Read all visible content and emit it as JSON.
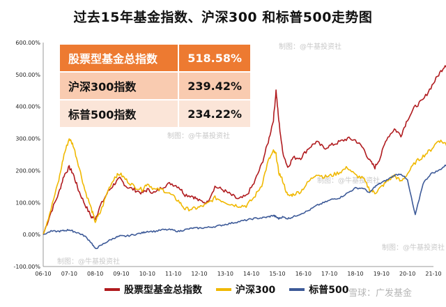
{
  "chart_data": {
    "type": "line",
    "title": "过去15年基金指数、沪深300 和标普500走势图",
    "y_ticks": [
      "600.00%",
      "500.00%",
      "400.00%",
      "300.00%",
      "200.00%",
      "100.00%",
      "0.00%",
      "-100.00%"
    ],
    "ylim": [
      -100,
      600
    ],
    "x_ticks": [
      "06-10",
      "07-10",
      "08-10",
      "09-10",
      "10-10",
      "11-10",
      "12-10",
      "13-10",
      "14-10",
      "15-10",
      "16-10",
      "17-10",
      "18-10",
      "19-10",
      "20-10",
      "21-10"
    ],
    "grid": false,
    "legend_position": "bottom",
    "series": [
      {
        "name": "股票型基金总指数",
        "color": "#b01a1e",
        "points": [
          [
            0,
            0
          ],
          [
            0.3,
            70
          ],
          [
            0.6,
            130
          ],
          [
            0.8,
            185
          ],
          [
            1.0,
            210
          ],
          [
            1.15,
            190
          ],
          [
            1.35,
            140
          ],
          [
            1.6,
            95
          ],
          [
            1.85,
            55
          ],
          [
            2.0,
            50
          ],
          [
            2.2,
            90
          ],
          [
            2.5,
            135
          ],
          [
            2.75,
            160
          ],
          [
            2.95,
            175
          ],
          [
            3.2,
            150
          ],
          [
            3.5,
            140
          ],
          [
            3.8,
            130
          ],
          [
            4.0,
            140
          ],
          [
            4.3,
            130
          ],
          [
            4.6,
            150
          ],
          [
            4.9,
            160
          ],
          [
            5.2,
            150
          ],
          [
            5.45,
            125
          ],
          [
            5.75,
            120
          ],
          [
            6.0,
            105
          ],
          [
            6.3,
            100
          ],
          [
            6.6,
            150
          ],
          [
            6.9,
            140
          ],
          [
            7.2,
            125
          ],
          [
            7.5,
            110
          ],
          [
            7.8,
            120
          ],
          [
            8.1,
            160
          ],
          [
            8.4,
            220
          ],
          [
            8.65,
            290
          ],
          [
            8.85,
            360
          ],
          [
            8.95,
            450
          ],
          [
            9.05,
            360
          ],
          [
            9.2,
            260
          ],
          [
            9.4,
            210
          ],
          [
            9.6,
            240
          ],
          [
            9.9,
            240
          ],
          [
            10.2,
            270
          ],
          [
            10.5,
            290
          ],
          [
            10.8,
            270
          ],
          [
            11.1,
            280
          ],
          [
            11.4,
            290
          ],
          [
            11.7,
            300
          ],
          [
            12.0,
            295
          ],
          [
            12.3,
            270
          ],
          [
            12.55,
            230
          ],
          [
            12.75,
            210
          ],
          [
            12.95,
            240
          ],
          [
            13.2,
            300
          ],
          [
            13.5,
            330
          ],
          [
            13.75,
            310
          ],
          [
            14.0,
            360
          ],
          [
            14.3,
            400
          ],
          [
            14.6,
            420
          ],
          [
            14.9,
            460
          ],
          [
            15.2,
            500
          ],
          [
            15.45,
            530
          ],
          [
            15.65,
            525
          ],
          [
            15.8,
            515
          ]
        ]
      },
      {
        "name": "沪深300",
        "color": "#f0b800",
        "points": [
          [
            0,
            0
          ],
          [
            0.3,
            80
          ],
          [
            0.6,
            170
          ],
          [
            0.8,
            250
          ],
          [
            1.0,
            300
          ],
          [
            1.15,
            280
          ],
          [
            1.35,
            220
          ],
          [
            1.6,
            140
          ],
          [
            1.85,
            80
          ],
          [
            2.0,
            40
          ],
          [
            2.2,
            70
          ],
          [
            2.5,
            140
          ],
          [
            2.75,
            180
          ],
          [
            2.95,
            190
          ],
          [
            3.2,
            170
          ],
          [
            3.5,
            150
          ],
          [
            3.8,
            140
          ],
          [
            4.0,
            160
          ],
          [
            4.3,
            140
          ],
          [
            4.6,
            140
          ],
          [
            4.9,
            125
          ],
          [
            5.2,
            105
          ],
          [
            5.45,
            80
          ],
          [
            5.75,
            80
          ],
          [
            6.0,
            85
          ],
          [
            6.3,
            95
          ],
          [
            6.6,
            115
          ],
          [
            6.9,
            105
          ],
          [
            7.2,
            95
          ],
          [
            7.5,
            90
          ],
          [
            7.8,
            90
          ],
          [
            8.1,
            115
          ],
          [
            8.4,
            155
          ],
          [
            8.65,
            230
          ],
          [
            8.85,
            260
          ],
          [
            8.95,
            250
          ],
          [
            9.05,
            195
          ],
          [
            9.2,
            170
          ],
          [
            9.4,
            120
          ],
          [
            9.6,
            125
          ],
          [
            9.9,
            135
          ],
          [
            10.2,
            165
          ],
          [
            10.5,
            190
          ],
          [
            10.8,
            180
          ],
          [
            11.1,
            185
          ],
          [
            11.4,
            195
          ],
          [
            11.7,
            210
          ],
          [
            12.0,
            185
          ],
          [
            12.3,
            175
          ],
          [
            12.55,
            140
          ],
          [
            12.75,
            130
          ],
          [
            12.95,
            145
          ],
          [
            13.2,
            165
          ],
          [
            13.5,
            185
          ],
          [
            13.75,
            165
          ],
          [
            14.0,
            190
          ],
          [
            14.3,
            225
          ],
          [
            14.6,
            245
          ],
          [
            14.9,
            265
          ],
          [
            15.2,
            295
          ],
          [
            15.45,
            285
          ],
          [
            15.65,
            260
          ],
          [
            15.8,
            240
          ]
        ]
      },
      {
        "name": "标普500",
        "color": "#3d5a98",
        "points": [
          [
            0,
            0
          ],
          [
            0.3,
            10
          ],
          [
            0.6,
            10
          ],
          [
            0.8,
            12
          ],
          [
            1.0,
            15
          ],
          [
            1.15,
            10
          ],
          [
            1.35,
            5
          ],
          [
            1.6,
            -5
          ],
          [
            1.85,
            -25
          ],
          [
            2.0,
            -45
          ],
          [
            2.2,
            -35
          ],
          [
            2.5,
            -20
          ],
          [
            2.75,
            -10
          ],
          [
            2.95,
            -5
          ],
          [
            3.2,
            -5
          ],
          [
            3.5,
            0
          ],
          [
            3.8,
            5
          ],
          [
            4.0,
            10
          ],
          [
            4.3,
            10
          ],
          [
            4.6,
            15
          ],
          [
            4.9,
            15
          ],
          [
            5.2,
            10
          ],
          [
            5.45,
            15
          ],
          [
            5.75,
            20
          ],
          [
            6.0,
            20
          ],
          [
            6.3,
            22
          ],
          [
            6.6,
            25
          ],
          [
            6.9,
            30
          ],
          [
            7.2,
            35
          ],
          [
            7.5,
            40
          ],
          [
            7.8,
            45
          ],
          [
            8.1,
            50
          ],
          [
            8.4,
            52
          ],
          [
            8.65,
            55
          ],
          [
            8.85,
            60
          ],
          [
            8.95,
            55
          ],
          [
            9.05,
            50
          ],
          [
            9.2,
            55
          ],
          [
            9.4,
            50
          ],
          [
            9.6,
            55
          ],
          [
            9.9,
            65
          ],
          [
            10.2,
            75
          ],
          [
            10.5,
            90
          ],
          [
            10.8,
            100
          ],
          [
            11.1,
            110
          ],
          [
            11.4,
            115
          ],
          [
            11.7,
            130
          ],
          [
            12.0,
            145
          ],
          [
            12.3,
            145
          ],
          [
            12.55,
            130
          ],
          [
            12.75,
            150
          ],
          [
            12.95,
            160
          ],
          [
            13.2,
            170
          ],
          [
            13.5,
            185
          ],
          [
            13.75,
            190
          ],
          [
            14.0,
            170
          ],
          [
            14.3,
            60
          ],
          [
            14.6,
            160
          ],
          [
            14.9,
            190
          ],
          [
            15.2,
            200
          ],
          [
            15.45,
            215
          ],
          [
            15.65,
            225
          ],
          [
            15.8,
            235
          ]
        ]
      }
    ]
  },
  "summary_table": [
    {
      "name": "股票型基金总指数",
      "value": "518.58%"
    },
    {
      "name": "沪深300指数",
      "value": "239.42%"
    },
    {
      "name": "标普500指数",
      "value": "234.22%"
    }
  ],
  "watermarks": [
    "制图：@牛基投资社",
    "制图：@牛基投资社",
    "制图：@牛基投资社",
    "制图：@牛基投资社",
    "制图：@牛基投资社",
    "制图：@牛基投资社"
  ],
  "footer": "雪球：广发基金"
}
